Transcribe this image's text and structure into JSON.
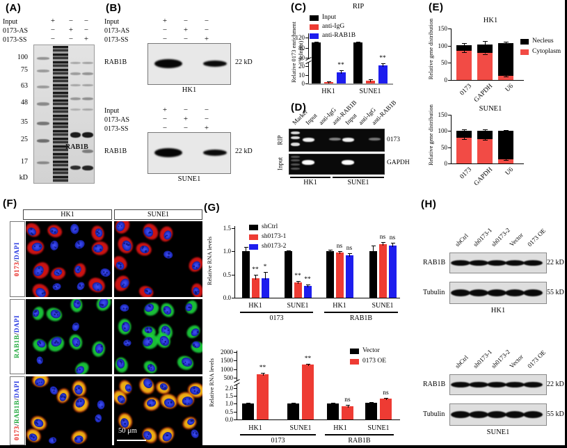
{
  "panels": {
    "A": {
      "label": "(A)",
      "conditions": [
        {
          "name": "Input",
          "signs": [
            "+",
            "−",
            "−"
          ]
        },
        {
          "name": "0173-AS",
          "signs": [
            "−",
            "+",
            "−"
          ]
        },
        {
          "name": "0173-SS",
          "signs": [
            "−",
            "−",
            "+"
          ]
        }
      ],
      "ladder": [
        "100",
        "75",
        "63",
        "48",
        "35",
        "25",
        "17"
      ],
      "ladder_unit": "kD",
      "band_label": "RAB1B"
    },
    "B": {
      "label": "(B)",
      "conditions": [
        {
          "name": "Input",
          "signs": [
            "+",
            "−",
            "−"
          ]
        },
        {
          "name": "0173-AS",
          "signs": [
            "−",
            "+",
            "−"
          ]
        },
        {
          "name": "0173-SS",
          "signs": [
            "−",
            "−",
            "+"
          ]
        }
      ],
      "blots": [
        {
          "cell_line": "HK1",
          "protein": "RAB1B",
          "mw": "22 kD"
        },
        {
          "cell_line": "SUNE1",
          "protein": "RAB1B",
          "mw": "22 kD"
        }
      ]
    },
    "C": {
      "label": "(C)"
    },
    "D": {
      "label": "(D)",
      "lane_labels": [
        "Marker",
        "Input",
        "anti-IgG",
        "anti-RAB1B",
        "Input",
        "anti-IgG",
        "anti-RAB1B"
      ],
      "row_labels_left": [
        "RIP",
        "Input"
      ],
      "row_labels_right": [
        "0173",
        "GAPDH"
      ],
      "group_labels": [
        "HK1",
        "SUNE1"
      ]
    },
    "E": {
      "label": "(E)"
    },
    "F": {
      "label": "(F)",
      "column_labels": [
        "HK1",
        "SUNE1"
      ],
      "row_labels": [
        [
          {
            "text": "0173",
            "color": "#e8251f"
          },
          {
            "text": "/",
            "color": "#222222"
          },
          {
            "text": "DAPI",
            "color": "#2637e0"
          }
        ],
        [
          {
            "text": "RAB1B",
            "color": "#1fa83c"
          },
          {
            "text": "/",
            "color": "#222222"
          },
          {
            "text": "DAPI",
            "color": "#2637e0"
          }
        ],
        [
          {
            "text": "0173",
            "color": "#e8251f"
          },
          {
            "text": "/",
            "color": "#222222"
          },
          {
            "text": "RAB1B",
            "color": "#1fa83c"
          },
          {
            "text": "/",
            "color": "#222222"
          },
          {
            "text": "DAPI",
            "color": "#2637e0"
          }
        ]
      ],
      "scale_bar": "50 μm"
    },
    "G": {
      "label": "(G)"
    },
    "H": {
      "label": "(H)",
      "lane_labels": [
        "shCtrl",
        "sh0173-1",
        "sh0173-2",
        "Vector",
        "0173 OE"
      ],
      "blots": [
        {
          "cell_line": "HK1",
          "rows": [
            {
              "protein": "RAB1B",
              "mw": "22 kD"
            },
            {
              "protein": "Tubulin",
              "mw": "55 kD"
            }
          ]
        },
        {
          "cell_line": "SUNE1",
          "rows": [
            {
              "protein": "RAB1B",
              "mw": "22 kD"
            },
            {
              "protein": "Tubulin",
              "mw": "55 kD"
            }
          ]
        }
      ]
    }
  },
  "colors": {
    "red": "#ee3b33",
    "blue": "#1d1dee",
    "black": "#000000",
    "green": "#1fa83c",
    "dapi_blue": "#2637e0",
    "cytoplasm_red": "#f24b45"
  },
  "chart_data": [
    {
      "id": "C",
      "type": "bar",
      "title": "RIP",
      "ylabel": [
        "Relative 0173 enrichment",
        "(% Input)"
      ],
      "categories": [
        "HK1",
        "SUNE1"
      ],
      "series": [
        {
          "name": "Input",
          "color": "#000000",
          "values": [
            100,
            100
          ],
          "err": [
            4,
            3
          ],
          "sig": [
            "",
            ""
          ]
        },
        {
          "name": "anti-IgG",
          "color": "#ee3b33",
          "values": [
            1.5,
            3.5
          ],
          "err": [
            0.6,
            1
          ],
          "sig": [
            "",
            ""
          ]
        },
        {
          "name": "anti-RAB1B",
          "color": "#1d1dee",
          "values": [
            13,
            21
          ],
          "err": [
            2,
            2.5
          ],
          "sig": [
            "**",
            "**"
          ]
        }
      ],
      "axis_break": true,
      "lower_ticks": [
        0,
        10,
        20
      ],
      "upper_ticks": [
        40,
        80,
        120
      ],
      "legend_position": "top-left"
    },
    {
      "id": "E1",
      "type": "stacked-bar",
      "title": "HK1",
      "ylabel": "Relative gene distribution",
      "categories": [
        "0173",
        "GAPDH",
        "U6"
      ],
      "series": [
        {
          "name": "Cytoplasm",
          "color": "#f24b45",
          "values": [
            86,
            79,
            13
          ],
          "err": [
            4,
            3,
            2
          ]
        },
        {
          "name": "Necleus",
          "color": "#000000",
          "values": [
            15,
            25,
            95
          ],
          "err": [
            7,
            9,
            3
          ]
        }
      ],
      "yticks": [
        0,
        50,
        100,
        150
      ],
      "legend": [
        {
          "name": "Necleus",
          "color": "#000000"
        },
        {
          "name": "Cytoplasm",
          "color": "#f24b45"
        }
      ]
    },
    {
      "id": "E2",
      "type": "stacked-bar",
      "title": "SUNE1",
      "ylabel": "Relative gene distribution",
      "categories": [
        "0173",
        "GAPDH",
        "U6"
      ],
      "series": [
        {
          "name": "Cytoplasm",
          "color": "#f24b45",
          "values": [
            79,
            76,
            13
          ],
          "err": [
            4,
            4,
            3
          ]
        },
        {
          "name": "Necleus",
          "color": "#000000",
          "values": [
            22,
            25,
            87
          ],
          "err": [
            5,
            4,
            3
          ]
        }
      ],
      "yticks": [
        0,
        50,
        100,
        150
      ]
    },
    {
      "id": "G1",
      "type": "bar",
      "ylabel": [
        "Relative RNA levels"
      ],
      "groups": [
        "HK1",
        "SUNE1",
        "HK1",
        "SUNE1"
      ],
      "super_groups": [
        {
          "label": "0173",
          "span": [
            0,
            1
          ]
        },
        {
          "label": "RAB1B",
          "span": [
            2,
            3
          ]
        }
      ],
      "series": [
        {
          "name": "shCtrl",
          "color": "#000000",
          "values": [
            1.0,
            1.0,
            1.0,
            1.0
          ],
          "err": [
            0.09,
            0.02,
            0.03,
            0.13
          ],
          "sig": [
            "",
            "",
            "",
            ""
          ]
        },
        {
          "name": "sh0173-1",
          "color": "#ee3b33",
          "values": [
            0.42,
            0.33,
            0.97,
            1.16
          ],
          "err": [
            0.07,
            0.03,
            0.03,
            0.04
          ],
          "sig": [
            "**",
            "**",
            "ns",
            "ns"
          ]
        },
        {
          "name": "sh0173-2",
          "color": "#1d1dee",
          "values": [
            0.42,
            0.25,
            0.91,
            1.13
          ],
          "err": [
            0.13,
            0.03,
            0.05,
            0.05
          ],
          "sig": [
            "*",
            "**",
            "ns",
            "ns"
          ]
        }
      ],
      "lower_ticks": [
        "0.0",
        "0.5",
        "1.0",
        "1.5"
      ]
    },
    {
      "id": "G2",
      "type": "bar",
      "ylabel": [
        "Relative RNA levels"
      ],
      "groups": [
        "HK1",
        "SUNE1",
        "HK1",
        "SUNE1"
      ],
      "super_groups": [
        {
          "label": "0173",
          "span": [
            0,
            1
          ]
        },
        {
          "label": "RAB1B",
          "span": [
            2,
            3
          ]
        }
      ],
      "series": [
        {
          "name": "Vector",
          "color": "#000000",
          "values": [
            1.0,
            1.0,
            1.0,
            1.05
          ],
          "err": [
            0.05,
            0.04,
            0.04,
            0.04
          ],
          "sig": [
            "",
            "",
            "",
            ""
          ]
        },
        {
          "name": "0173 OE",
          "color": "#ee3b33",
          "values": [
            700,
            1250,
            0.85,
            1.3
          ],
          "err": [
            60,
            70,
            0.06,
            0.05
          ],
          "sig": [
            "**",
            "**",
            "ns",
            "ns"
          ]
        }
      ],
      "axis_break": true,
      "lower_ticks": [
        "0.0",
        "0.5",
        "1.0",
        "1.5",
        "2.0"
      ],
      "upper_ticks": [
        500,
        1000,
        1500,
        2000
      ]
    }
  ]
}
